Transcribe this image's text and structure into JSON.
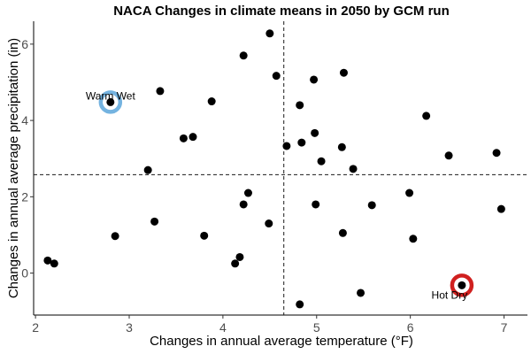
{
  "chart_data": {
    "type": "scatter",
    "title": "NACA Changes in climate means in 2050 by GCM run",
    "xlabel": "Changes in annual average temperature (°F)",
    "ylabel": "Changes in annual average precipitation (in)",
    "xlim": [
      1.98,
      7.25
    ],
    "ylim": [
      -1.1,
      6.6
    ],
    "xticks": [
      2,
      3,
      4,
      5,
      6,
      7
    ],
    "yticks": [
      0,
      2,
      4,
      6
    ],
    "ref_lines": {
      "vertical_x": 4.65,
      "horizontal_y": 2.58
    },
    "grid": false,
    "points": [
      {
        "x": 2.13,
        "y": 0.33
      },
      {
        "x": 2.2,
        "y": 0.25
      },
      {
        "x": 2.85,
        "y": 0.97
      },
      {
        "x": 2.8,
        "y": 4.48
      },
      {
        "x": 3.2,
        "y": 2.7
      },
      {
        "x": 3.27,
        "y": 1.35
      },
      {
        "x": 3.33,
        "y": 4.77
      },
      {
        "x": 3.58,
        "y": 3.53
      },
      {
        "x": 3.68,
        "y": 3.57
      },
      {
        "x": 3.8,
        "y": 0.98
      },
      {
        "x": 3.88,
        "y": 4.5
      },
      {
        "x": 4.13,
        "y": 0.25
      },
      {
        "x": 4.18,
        "y": 0.42
      },
      {
        "x": 4.22,
        "y": 1.8
      },
      {
        "x": 4.27,
        "y": 2.1
      },
      {
        "x": 4.22,
        "y": 5.7
      },
      {
        "x": 4.5,
        "y": 6.28
      },
      {
        "x": 4.57,
        "y": 5.17
      },
      {
        "x": 4.49,
        "y": 1.3
      },
      {
        "x": 4.68,
        "y": 3.33
      },
      {
        "x": 4.82,
        "y": 4.4
      },
      {
        "x": 4.84,
        "y": 3.42
      },
      {
        "x": 4.82,
        "y": -0.82
      },
      {
        "x": 4.97,
        "y": 5.07
      },
      {
        "x": 4.98,
        "y": 3.67
      },
      {
        "x": 4.99,
        "y": 1.8
      },
      {
        "x": 5.05,
        "y": 2.93
      },
      {
        "x": 5.27,
        "y": 3.3
      },
      {
        "x": 5.29,
        "y": 5.25
      },
      {
        "x": 5.28,
        "y": 1.05
      },
      {
        "x": 5.39,
        "y": 2.73
      },
      {
        "x": 5.47,
        "y": -0.52
      },
      {
        "x": 5.59,
        "y": 1.78
      },
      {
        "x": 5.99,
        "y": 2.1
      },
      {
        "x": 6.03,
        "y": 0.9
      },
      {
        "x": 6.17,
        "y": 4.12
      },
      {
        "x": 6.41,
        "y": 3.08
      },
      {
        "x": 6.55,
        "y": -0.32
      },
      {
        "x": 6.92,
        "y": 3.15
      },
      {
        "x": 6.97,
        "y": 1.68
      }
    ],
    "highlights": [
      {
        "label": "Warm Wet",
        "x": 2.8,
        "y": 4.48,
        "color": "#74b3e0"
      },
      {
        "label": "Hot Dry",
        "x": 6.55,
        "y": -0.32,
        "color": "#d0201f"
      }
    ],
    "point_color": "#000000",
    "reference_line_color": "#1a1a1a"
  }
}
